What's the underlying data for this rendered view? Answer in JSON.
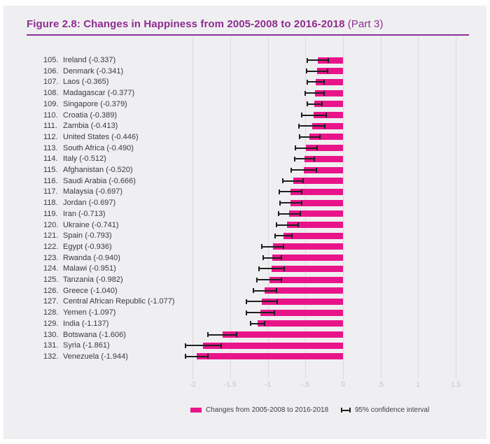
{
  "header": {
    "title_bold": "Figure 2.8: Changes in Happiness from 2005-2008 to 2016-2018",
    "title_suffix": " (Part 3)"
  },
  "legend": {
    "change_label": "Changes from 2005-2008 to 2016-2018",
    "ci_label": "95% confidence interval"
  },
  "colors": {
    "accent_purple": "#8E2C8F",
    "rule_purple": "#8D3092",
    "bar_pink": "#E9148A",
    "grid": "#DBDBDD",
    "tick_label": "#C3C3C6",
    "label_text": "#3A3A3C",
    "error_bar": "#1F1F1F",
    "panel_bg": "#EFEFF1"
  },
  "chart_data": {
    "type": "bar",
    "orientation": "horizontal",
    "title": "Figure 2.8: Changes in Happiness from 2005-2008 to 2016-2018 (Part 3)",
    "xlabel": "",
    "ylabel": "",
    "xlim": [
      -2.2,
      1.75
    ],
    "grid": true,
    "legend_position": "bottom",
    "xticks": [
      -2,
      -1.5,
      -1,
      -0.5,
      0,
      0.5,
      1,
      1.5
    ],
    "xtick_labels": [
      "-2",
      "-1.5",
      "-1",
      "-.5",
      "0",
      ".5",
      "1",
      "1.5"
    ],
    "series_name": "Changes from 2005-2008 to 2016-2018",
    "ci_name": "95% confidence interval",
    "rows": [
      {
        "rank": 105,
        "name": "Ireland",
        "value": -0.337,
        "ci": 0.14
      },
      {
        "rank": 106,
        "name": "Denmark",
        "value": -0.341,
        "ci": 0.14
      },
      {
        "rank": 107,
        "name": "Laos",
        "value": -0.365,
        "ci": 0.11
      },
      {
        "rank": 108,
        "name": "Madagascar",
        "value": -0.377,
        "ci": 0.128
      },
      {
        "rank": 109,
        "name": "Singapore",
        "value": -0.379,
        "ci": 0.095
      },
      {
        "rank": 110,
        "name": "Croatia",
        "value": -0.389,
        "ci": 0.165
      },
      {
        "rank": 111,
        "name": "Zambia",
        "value": -0.413,
        "ci": 0.17
      },
      {
        "rank": 112,
        "name": "United States",
        "value": -0.446,
        "ci": 0.135
      },
      {
        "rank": 113,
        "name": "South Africa",
        "value": -0.49,
        "ci": 0.148
      },
      {
        "rank": 114,
        "name": "Italy",
        "value": -0.512,
        "ci": 0.132
      },
      {
        "rank": 115,
        "name": "Afghanistan",
        "value": -0.52,
        "ci": 0.166
      },
      {
        "rank": 116,
        "name": "Saudi Arabia",
        "value": -0.666,
        "ci": 0.132
      },
      {
        "rank": 117,
        "name": "Malaysia",
        "value": -0.697,
        "ci": 0.15
      },
      {
        "rank": 118,
        "name": "Jordan",
        "value": -0.697,
        "ci": 0.146
      },
      {
        "rank": 119,
        "name": "Iran",
        "value": -0.713,
        "ci": 0.143
      },
      {
        "rank": 120,
        "name": "Ukraine",
        "value": -0.741,
        "ci": 0.144
      },
      {
        "rank": 121,
        "name": "Spain",
        "value": -0.793,
        "ci": 0.112
      },
      {
        "rank": 122,
        "name": "Egypt",
        "value": -0.936,
        "ci": 0.14
      },
      {
        "rank": 123,
        "name": "Rwanda",
        "value": -0.94,
        "ci": 0.124
      },
      {
        "rank": 124,
        "name": "Malawi",
        "value": -0.951,
        "ci": 0.17
      },
      {
        "rank": 125,
        "name": "Tanzania",
        "value": -0.982,
        "ci": 0.163
      },
      {
        "rank": 126,
        "name": "Greece",
        "value": -1.04,
        "ci": 0.155
      },
      {
        "rank": 127,
        "name": "Central African Republic",
        "value": -1.077,
        "ci": 0.205
      },
      {
        "rank": 128,
        "name": "Yemen",
        "value": -1.097,
        "ci": 0.186
      },
      {
        "rank": 129,
        "name": "India",
        "value": -1.137,
        "ci": 0.093
      },
      {
        "rank": 130,
        "name": "Botswana",
        "value": -1.606,
        "ci": 0.189
      },
      {
        "rank": 131,
        "name": "Syria",
        "value": -1.861,
        "ci": 0.237
      },
      {
        "rank": 132,
        "name": "Venezuela",
        "value": -1.944,
        "ci": 0.15
      }
    ]
  }
}
